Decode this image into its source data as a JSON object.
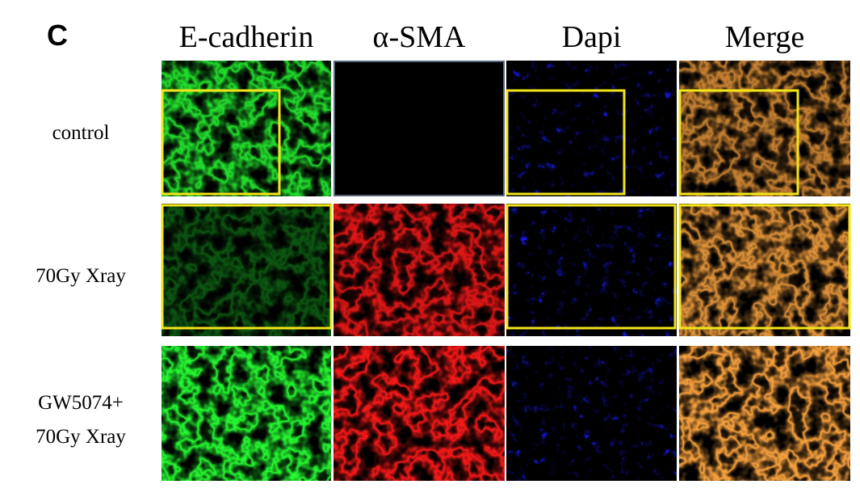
{
  "panel_label": "C",
  "columns": [
    "E-cadherin",
    "α-SMA",
    "Dapi",
    "Merge"
  ],
  "rows": [
    [
      "control"
    ],
    [
      "70Gy Xray"
    ],
    [
      "GW5074+",
      "70Gy Xray"
    ]
  ]
}
